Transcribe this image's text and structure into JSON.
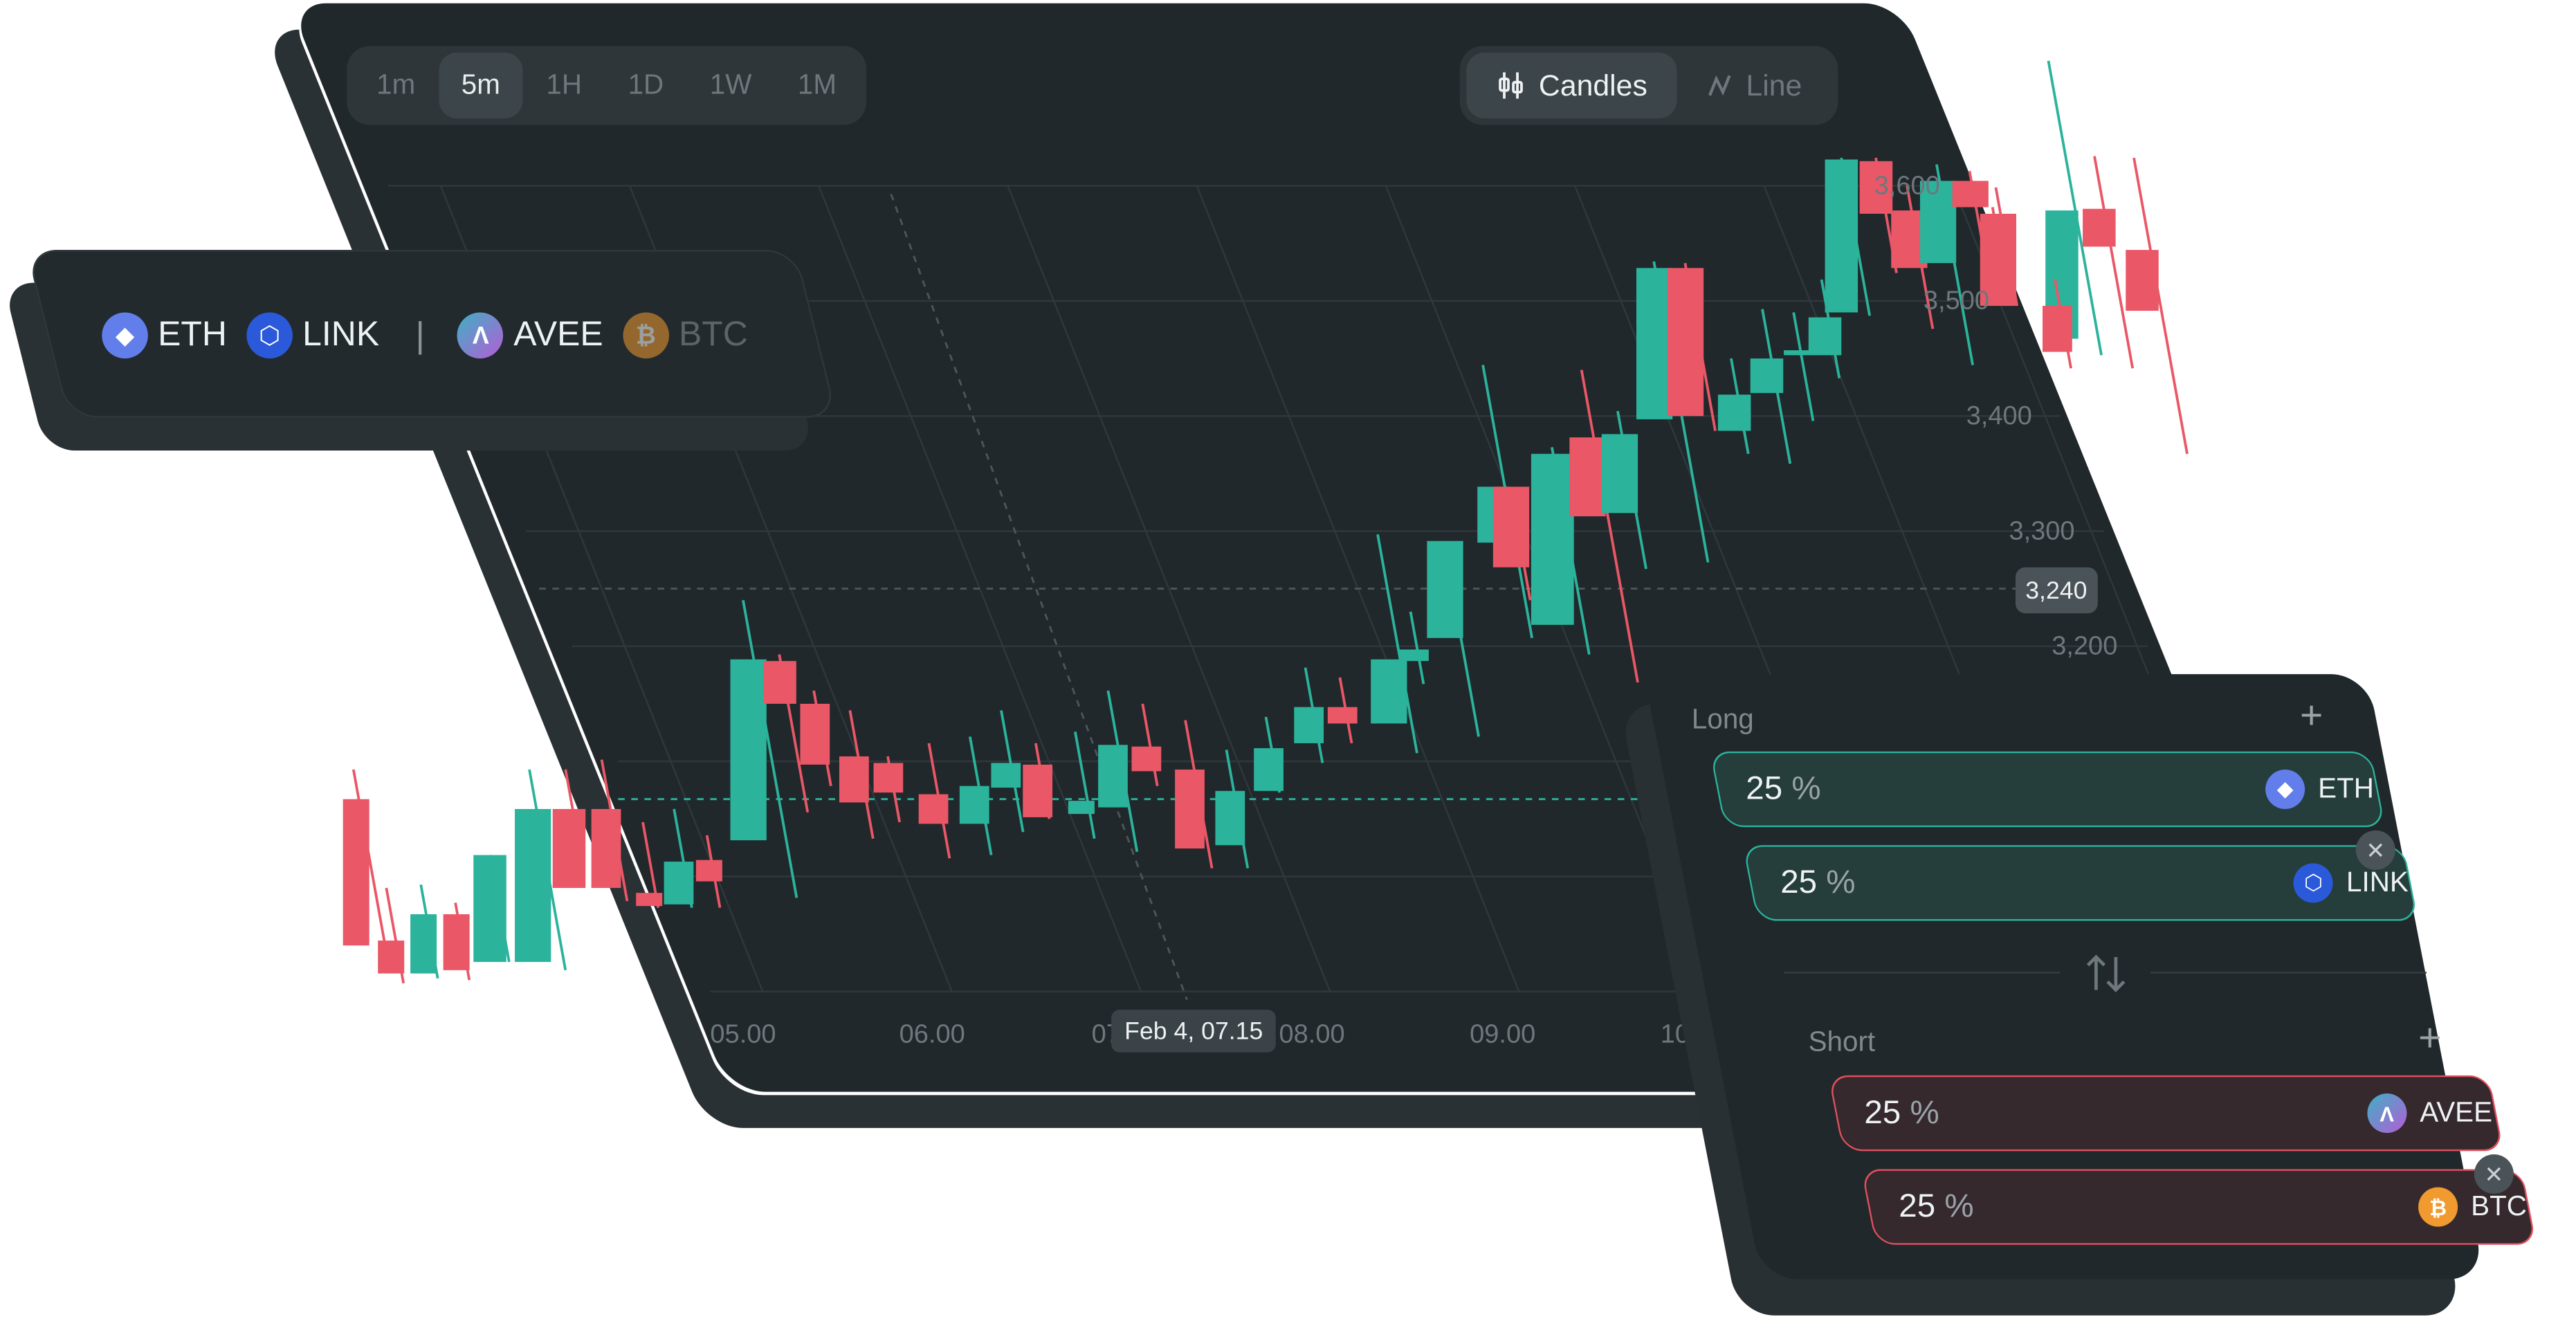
{
  "timeframes": [
    "1m",
    "5m",
    "1H",
    "1D",
    "1W",
    "1M"
  ],
  "active_timeframe": "5m",
  "chart_types": [
    {
      "label": "Candles",
      "icon": "candles-icon",
      "active": true
    },
    {
      "label": "Line",
      "icon": "line-chart-icon",
      "active": false
    }
  ],
  "assets_long": [
    {
      "symbol": "ETH",
      "icon": "eth-icon",
      "color": "#627eea"
    },
    {
      "symbol": "LINK",
      "icon": "link-icon",
      "color": "#2a5ada"
    }
  ],
  "assets_short": [
    {
      "symbol": "AVEE",
      "icon": "aave-icon",
      "color": "#8e6fc4"
    },
    {
      "symbol": "BTC",
      "icon": "btc-icon",
      "color": "#f09a2f"
    }
  ],
  "chart_data": {
    "type": "candlestick",
    "y_ticks": [
      "3,600",
      "3,500",
      "3,400",
      "3,300",
      "3,200"
    ],
    "x_ticks": [
      "05.00",
      "06.00",
      "07.00",
      "08.00",
      "09.00",
      "10.00"
    ],
    "current_price": "3,240",
    "crosshair_time": "Feb 4, 07.15",
    "colors": {
      "up": "#2bb39c",
      "down": "#ea5766"
    },
    "grid": true
  },
  "portfolio": {
    "long": {
      "label": "Long",
      "allocations": [
        {
          "value": "25",
          "unit": "%",
          "token": "ETH"
        },
        {
          "value": "25",
          "unit": "%",
          "token": "LINK"
        }
      ]
    },
    "short": {
      "label": "Short",
      "allocations": [
        {
          "value": "25",
          "unit": "%",
          "token": "AVEE"
        },
        {
          "value": "25",
          "unit": "%",
          "token": "BTC"
        }
      ]
    }
  }
}
